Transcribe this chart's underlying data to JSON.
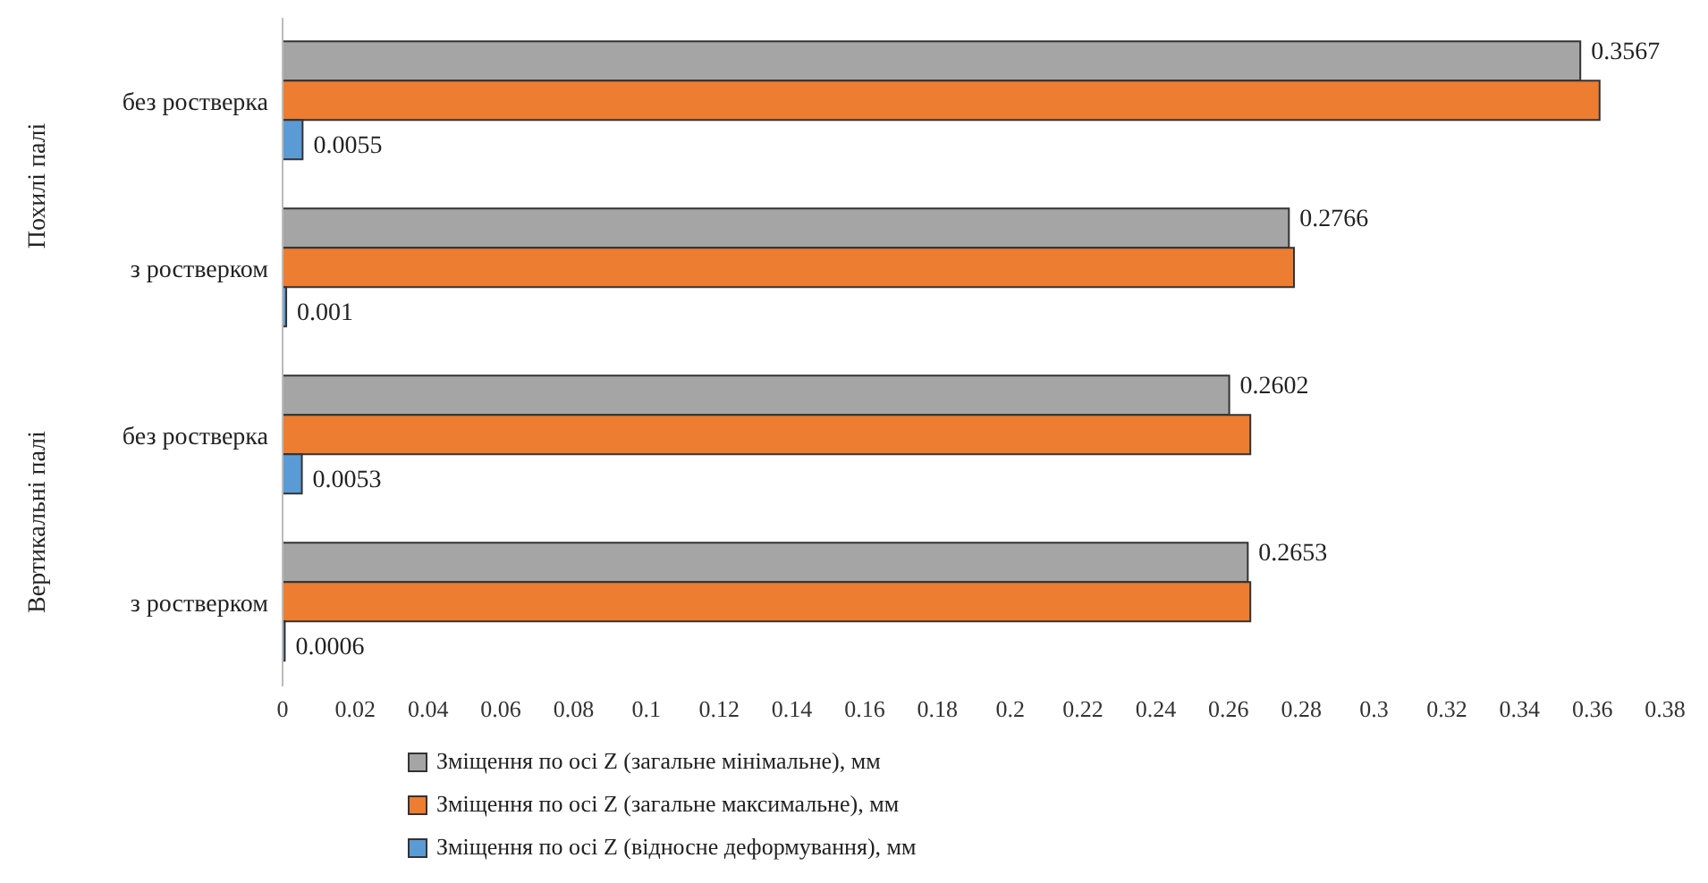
{
  "chart_data": {
    "type": "bar",
    "orientation": "horizontal",
    "categories": [
      "без ростверка",
      "з ростверком",
      "без ростверка",
      "з ростверком"
    ],
    "series": [
      {
        "name": "Зміщення по осі Z (загальне мінімальне), мм",
        "color": "#a5a5a5",
        "values": [
          0.3567,
          0.2766,
          0.2602,
          0.2653
        ],
        "value_labels": [
          "0.3567",
          "0.2766",
          "0.2602",
          "0.2653"
        ]
      },
      {
        "name": "Зміщення по осі Z (загальне максимальне), мм",
        "color": "#ed7d31",
        "values": [
          0.362,
          0.278,
          0.266,
          0.266
        ]
      },
      {
        "name": "Зміщення по осі Z (відносне деформування), мм",
        "color": "#5b9bd5",
        "values": [
          0.0055,
          0.001,
          0.0053,
          0.0006
        ],
        "value_labels": [
          "0.0055",
          "0.001",
          "0.0053",
          "0.0006"
        ]
      }
    ],
    "annotations": [
      "Похилі палі",
      "Вертикальні палі"
    ],
    "xlim": [
      0,
      0.38
    ],
    "xticks": [
      0,
      0.02,
      0.04,
      0.06,
      0.08,
      0.1,
      0.12,
      0.14,
      0.16,
      0.18,
      0.2,
      0.22,
      0.24,
      0.26,
      0.28,
      0.3,
      0.32,
      0.34,
      0.36,
      0.38
    ],
    "grid": false,
    "legend": "bottom"
  }
}
